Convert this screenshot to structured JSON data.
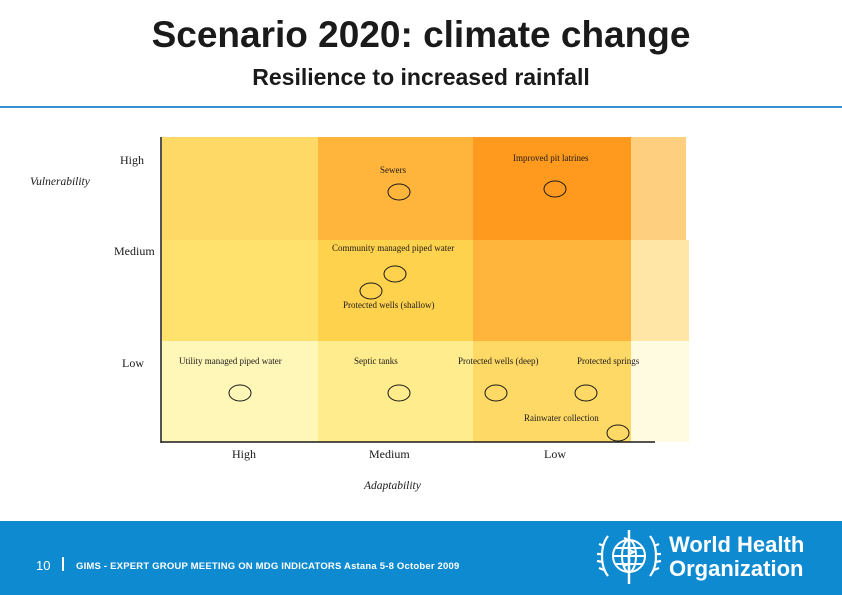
{
  "slide": {
    "title": "Scenario 2020: climate change",
    "subtitle": "Resilience to increased rainfall"
  },
  "matrix": {
    "y_axis_label": "Vulnerability",
    "y_levels": [
      "High",
      "Medium",
      "Low"
    ],
    "x_axis_label": "Adaptability",
    "x_levels": [
      "High",
      "Medium",
      "Low"
    ],
    "options": [
      {
        "label": "Sewers",
        "vulnerability": "High",
        "adaptability": "Medium"
      },
      {
        "label": "Improved pit latrines",
        "vulnerability": "High",
        "adaptability": "Low"
      },
      {
        "label": "Community managed piped water",
        "vulnerability": "Medium",
        "adaptability": "Medium"
      },
      {
        "label": "Protected wells (shallow)",
        "vulnerability": "Medium",
        "adaptability": "Medium"
      },
      {
        "label": "Utility managed piped water",
        "vulnerability": "Low",
        "adaptability": "High"
      },
      {
        "label": "Septic tanks",
        "vulnerability": "Low",
        "adaptability": "Medium"
      },
      {
        "label": "Protected wells (deep)",
        "vulnerability": "Low",
        "adaptability": "Low"
      },
      {
        "label": "Protected springs",
        "vulnerability": "Low",
        "adaptability": "Low"
      },
      {
        "label": "Rainwater collection",
        "vulnerability": "Low",
        "adaptability": "Low"
      }
    ],
    "colors": {
      "darkest": "#ff9a1e",
      "dark": "#ffb43c",
      "mid": "#ffc94a",
      "light": "#ffd966",
      "pale": "#ffe690",
      "palest": "#fff3b0",
      "lightest": "#fffbd6",
      "edge_high": "#ffcf80",
      "edge_mid": "#ffe6a6",
      "edge_low": "#fffbe0"
    }
  },
  "footer": {
    "page_number": "10",
    "text": "GIMS  - EXPERT GROUP MEETING ON MDG INDICATORS Astana 5-8 October 2009",
    "org_line1": "World Health",
    "org_line2": "Organization",
    "bg_color": "#0e8ad0"
  }
}
